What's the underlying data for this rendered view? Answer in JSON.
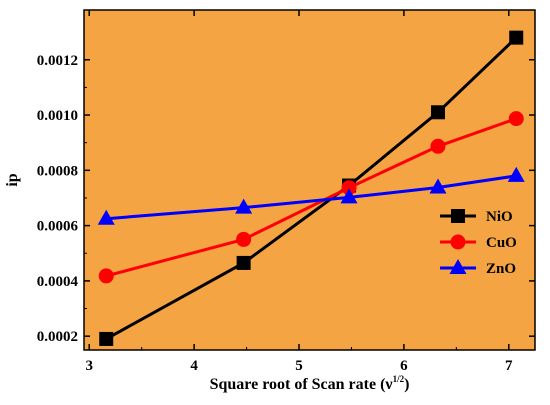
{
  "chart_data": {
    "type": "line",
    "xlabel": "Square root of Scan rate (ν",
    "xlabel_sup": "1/2",
    "xlabel_close": ")",
    "ylabel": "ip",
    "xlim": [
      2.95,
      7.25
    ],
    "ylim": [
      0.00015,
      0.00138
    ],
    "x_ticks": [
      3,
      4,
      5,
      6,
      7
    ],
    "x_tick_labels": [
      "3",
      "4",
      "5",
      "6",
      "7"
    ],
    "y_ticks": [
      0.0002,
      0.0004,
      0.0006,
      0.0008,
      0.001,
      0.0012
    ],
    "y_tick_labels": [
      "0.0002",
      "0.0004",
      "0.0006",
      "0.0008",
      "0.0010",
      "0.0012"
    ],
    "grid": false,
    "background_color": "#F5A443",
    "legend_position": "right",
    "x": [
      3.162,
      4.472,
      5.477,
      6.325,
      7.071
    ],
    "series": [
      {
        "name": "NiO",
        "color": "#000000",
        "marker": "square",
        "values": [
          0.00019,
          0.000465,
          0.000745,
          0.00101,
          0.00128
        ]
      },
      {
        "name": "CuO",
        "color": "#FF0000",
        "marker": "circle",
        "values": [
          0.000418,
          0.00055,
          0.000737,
          0.000887,
          0.000987
        ]
      },
      {
        "name": "ZnO",
        "color": "#0000FF",
        "marker": "triangle",
        "values": [
          0.000625,
          0.000665,
          0.000702,
          0.000738,
          0.00078
        ]
      }
    ]
  }
}
